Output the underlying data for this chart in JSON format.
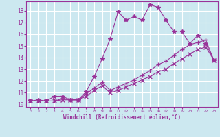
{
  "xlabel": "Windchill (Refroidissement éolien,°C)",
  "bg_color": "#cce8f0",
  "line_color": "#993399",
  "grid_color": "#ffffff",
  "spine_color": "#993399",
  "xlim": [
    -0.5,
    23.5
  ],
  "ylim": [
    9.8,
    18.8
  ],
  "yticks": [
    10,
    11,
    12,
    13,
    14,
    15,
    16,
    17,
    18
  ],
  "xticks": [
    0,
    1,
    2,
    3,
    4,
    5,
    6,
    7,
    8,
    9,
    10,
    11,
    12,
    13,
    14,
    15,
    16,
    17,
    18,
    19,
    20,
    21,
    22,
    23
  ],
  "series": [
    {
      "x": [
        0,
        1,
        2,
        3,
        4,
        5,
        6,
        7,
        8,
        9,
        10,
        11,
        12,
        13,
        14,
        15,
        16,
        17,
        18,
        19,
        20,
        21,
        22,
        23
      ],
      "y": [
        10.3,
        10.4,
        10.3,
        10.7,
        10.7,
        10.4,
        10.4,
        11.1,
        12.4,
        13.9,
        15.6,
        17.9,
        17.2,
        17.5,
        17.2,
        18.5,
        18.3,
        17.2,
        16.2,
        16.2,
        15.2,
        15.9,
        15.2,
        13.8
      ],
      "marker": "*",
      "ms": 4
    },
    {
      "x": [
        0,
        1,
        2,
        3,
        4,
        5,
        6,
        7,
        8,
        9,
        10,
        11,
        12,
        13,
        14,
        15,
        16,
        17,
        18,
        19,
        20,
        21,
        22,
        23
      ],
      "y": [
        10.3,
        10.3,
        10.3,
        10.3,
        10.5,
        10.4,
        10.4,
        10.9,
        11.4,
        11.9,
        11.2,
        11.5,
        11.8,
        12.1,
        12.5,
        12.9,
        13.4,
        13.7,
        14.2,
        14.7,
        15.1,
        15.3,
        15.5,
        13.8
      ],
      "marker": "+",
      "ms": 5
    },
    {
      "x": [
        0,
        1,
        2,
        3,
        4,
        5,
        6,
        7,
        8,
        9,
        10,
        11,
        12,
        13,
        14,
        15,
        16,
        17,
        18,
        19,
        20,
        21,
        22,
        23
      ],
      "y": [
        10.3,
        10.3,
        10.3,
        10.3,
        10.4,
        10.4,
        10.4,
        10.7,
        11.2,
        11.6,
        11.0,
        11.2,
        11.5,
        11.8,
        12.1,
        12.4,
        12.8,
        13.0,
        13.5,
        13.9,
        14.3,
        14.7,
        14.9,
        13.8
      ],
      "marker": "x",
      "ms": 4
    }
  ]
}
